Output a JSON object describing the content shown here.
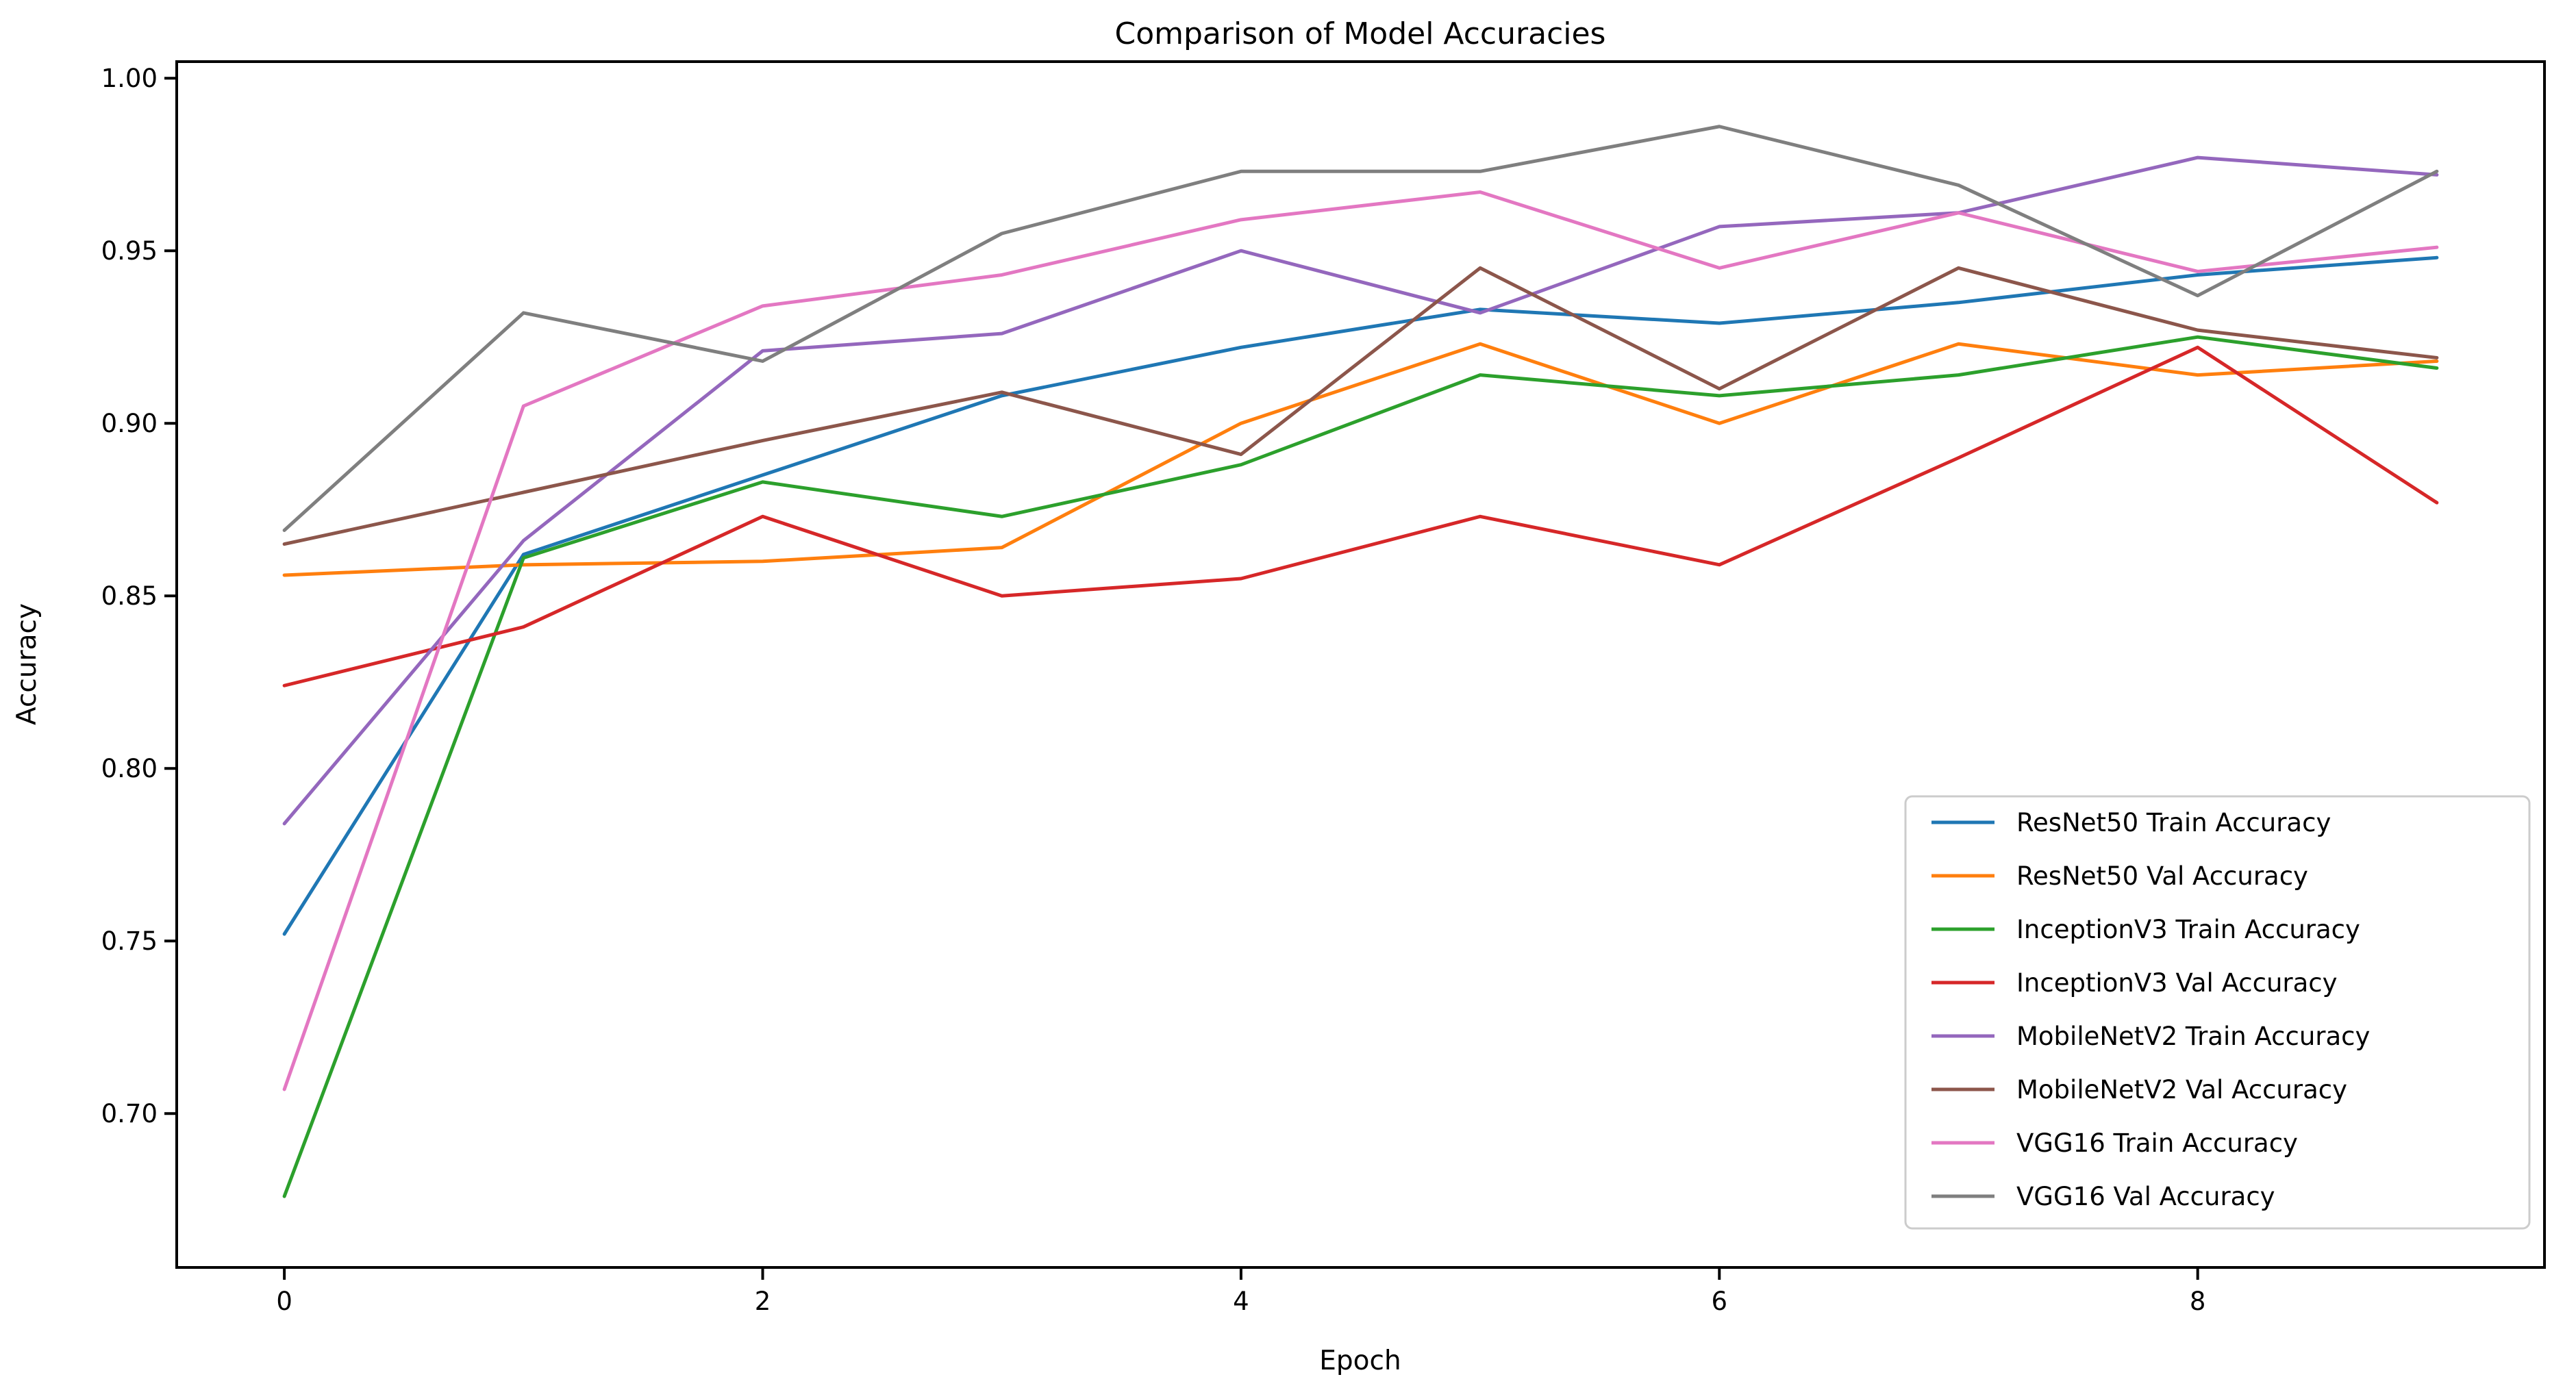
{
  "chart_data": {
    "type": "line",
    "title": "Comparison of Model Accuracies",
    "xlabel": "Epoch",
    "ylabel": "Accuracy",
    "x": [
      0,
      1,
      2,
      3,
      4,
      5,
      6,
      7,
      8,
      9
    ],
    "x_ticks": [
      "0",
      "2",
      "4",
      "6",
      "8"
    ],
    "x_tick_values": [
      0,
      2,
      4,
      6,
      8
    ],
    "y_ticks": [
      "0.70",
      "0.75",
      "0.80",
      "0.85",
      "0.90",
      "0.95",
      "1.00"
    ],
    "y_tick_values": [
      0.7,
      0.75,
      0.8,
      0.85,
      0.9,
      0.95,
      1.0
    ],
    "xlim": [
      -0.45,
      9.45
    ],
    "ylim": [
      0.6554,
      1.0048
    ],
    "grid": false,
    "legend_position": "lower right",
    "series": [
      {
        "name": "ResNet50 Train Accuracy",
        "color": "#1f77b4",
        "values": [
          0.752,
          0.862,
          0.885,
          0.908,
          0.922,
          0.933,
          0.929,
          0.935,
          0.943,
          0.948
        ]
      },
      {
        "name": "ResNet50 Val Accuracy",
        "color": "#ff7f0e",
        "values": [
          0.856,
          0.859,
          0.86,
          0.864,
          0.9,
          0.923,
          0.9,
          0.923,
          0.914,
          0.918
        ]
      },
      {
        "name": "InceptionV3 Train Accuracy",
        "color": "#2ca02c",
        "values": [
          0.676,
          0.861,
          0.883,
          0.873,
          0.888,
          0.914,
          0.908,
          0.914,
          0.925,
          0.916
        ]
      },
      {
        "name": "InceptionV3 Val Accuracy",
        "color": "#d62728",
        "values": [
          0.824,
          0.841,
          0.873,
          0.85,
          0.855,
          0.873,
          0.859,
          0.89,
          0.922,
          0.877
        ]
      },
      {
        "name": "MobileNetV2 Train Accuracy",
        "color": "#9467bd",
        "values": [
          0.784,
          0.866,
          0.921,
          0.926,
          0.95,
          0.932,
          0.957,
          0.961,
          0.977,
          0.972
        ]
      },
      {
        "name": "MobileNetV2 Val Accuracy",
        "color": "#8c564b",
        "values": [
          0.865,
          0.88,
          0.895,
          0.909,
          0.891,
          0.945,
          0.91,
          0.945,
          0.927,
          0.919
        ]
      },
      {
        "name": "VGG16 Train Accuracy",
        "color": "#e377c2",
        "values": [
          0.707,
          0.905,
          0.934,
          0.943,
          0.959,
          0.967,
          0.945,
          0.961,
          0.944,
          0.951
        ]
      },
      {
        "name": "VGG16 Val Accuracy",
        "color": "#7f7f7f",
        "values": [
          0.869,
          0.932,
          0.918,
          0.955,
          0.973,
          0.973,
          0.986,
          0.969,
          0.937,
          0.973
        ]
      }
    ],
    "colors": {
      "spine": "#000000",
      "legend_border": "#cccccc",
      "legend_background": "#ffffff"
    }
  }
}
